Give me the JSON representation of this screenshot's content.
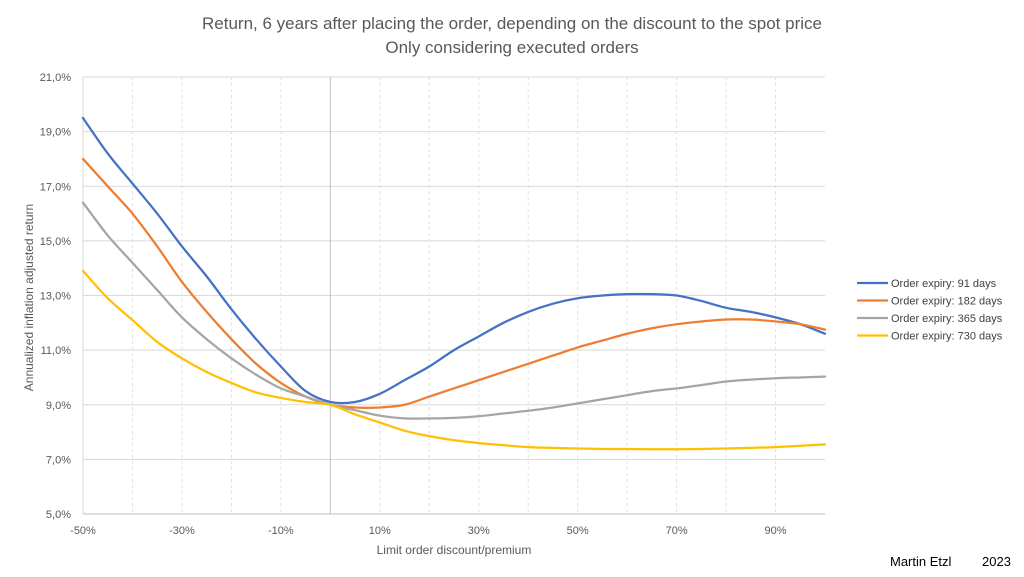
{
  "chart_data": {
    "type": "line",
    "title": [
      "Return, 6 years after placing the order, depending on the discount to the spot price",
      "Only considering executed orders"
    ],
    "xlabel": "Limit order discount/premium",
    "ylabel": "Annualized inflation adjusted return",
    "xlim": [
      -50,
      100
    ],
    "ylim": [
      5,
      21
    ],
    "x_ticks": [
      "-50%",
      "-30%",
      "-10%",
      "10%",
      "30%",
      "50%",
      "70%",
      "90%"
    ],
    "y_ticks": [
      "5,0%",
      "7,0%",
      "9,0%",
      "11,0%",
      "13,0%",
      "15,0%",
      "17,0%",
      "19,0%",
      "21,0%"
    ],
    "grid": true,
    "legend_position": "right",
    "series": [
      {
        "name": "Order expiry: 91 days",
        "color": "#4472C4",
        "x": [
          -50,
          -45,
          -40,
          -35,
          -30,
          -25,
          -20,
          -15,
          -10,
          -5,
          0,
          5,
          10,
          15,
          20,
          25,
          30,
          35,
          40,
          45,
          50,
          55,
          60,
          65,
          70,
          75,
          80,
          85,
          90,
          95,
          100
        ],
        "y": [
          19.5,
          18.2,
          17.1,
          16.0,
          14.8,
          13.7,
          12.5,
          11.4,
          10.4,
          9.5,
          9.1,
          9.1,
          9.4,
          9.9,
          10.4,
          11.0,
          11.5,
          12.0,
          12.4,
          12.7,
          12.9,
          13.0,
          13.05,
          13.05,
          13.0,
          12.8,
          12.55,
          12.4,
          12.2,
          11.95,
          11.6
        ]
      },
      {
        "name": "Order expiry: 182 days",
        "color": "#ED7D31",
        "x": [
          -50,
          -45,
          -40,
          -35,
          -30,
          -25,
          -20,
          -15,
          -10,
          -5,
          0,
          5,
          10,
          15,
          20,
          25,
          30,
          35,
          40,
          45,
          50,
          55,
          60,
          65,
          70,
          75,
          80,
          85,
          90,
          95,
          100
        ],
        "y": [
          18.0,
          17.0,
          16.0,
          14.8,
          13.5,
          12.4,
          11.4,
          10.5,
          9.8,
          9.3,
          9.0,
          8.9,
          8.9,
          9.0,
          9.3,
          9.6,
          9.9,
          10.2,
          10.5,
          10.8,
          11.1,
          11.35,
          11.6,
          11.8,
          11.95,
          12.05,
          12.12,
          12.12,
          12.05,
          11.95,
          11.75
        ]
      },
      {
        "name": "Order expiry: 365 days",
        "color": "#A5A5A5",
        "x": [
          -50,
          -45,
          -40,
          -35,
          -30,
          -25,
          -20,
          -15,
          -10,
          -5,
          0,
          5,
          10,
          15,
          20,
          25,
          30,
          35,
          40,
          45,
          50,
          55,
          60,
          65,
          70,
          75,
          80,
          85,
          90,
          95,
          100
        ],
        "y": [
          16.4,
          15.2,
          14.2,
          13.2,
          12.2,
          11.4,
          10.7,
          10.1,
          9.6,
          9.3,
          9.0,
          8.8,
          8.6,
          8.5,
          8.5,
          8.52,
          8.58,
          8.68,
          8.78,
          8.9,
          9.05,
          9.2,
          9.35,
          9.5,
          9.6,
          9.72,
          9.85,
          9.92,
          9.97,
          10.0,
          10.03
        ]
      },
      {
        "name": "Order expiry: 730 days",
        "color": "#FFC000",
        "x": [
          -50,
          -45,
          -40,
          -35,
          -30,
          -25,
          -20,
          -15,
          -10,
          -5,
          0,
          5,
          10,
          15,
          20,
          25,
          30,
          35,
          40,
          45,
          50,
          55,
          60,
          65,
          70,
          75,
          80,
          85,
          90,
          95,
          100
        ],
        "y": [
          13.9,
          12.9,
          12.1,
          11.3,
          10.7,
          10.2,
          9.8,
          9.45,
          9.25,
          9.1,
          9.0,
          8.65,
          8.35,
          8.05,
          7.85,
          7.7,
          7.6,
          7.52,
          7.45,
          7.42,
          7.4,
          7.38,
          7.38,
          7.37,
          7.37,
          7.38,
          7.4,
          7.42,
          7.45,
          7.5,
          7.55
        ]
      }
    ]
  },
  "footer": {
    "author": "Martin Etzl",
    "year": "2023"
  }
}
